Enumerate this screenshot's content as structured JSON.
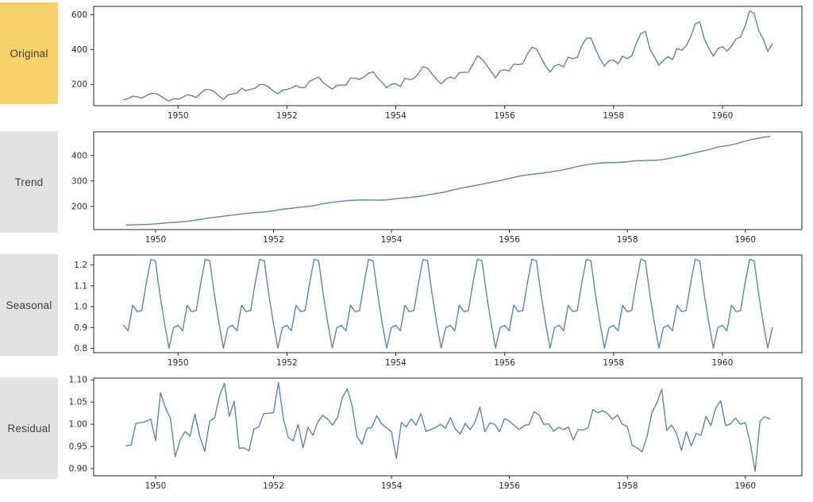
{
  "figure": {
    "background": "#ffffff"
  },
  "colors": {
    "line": "#5b87a8",
    "axis": "#262626",
    "tick_text": "#2b2b2b",
    "label_text": "#3f3f3f",
    "original_label_bg": "#f7d269",
    "gray_label_bg": "#e3e2e2"
  },
  "chart_data": [
    {
      "type": "line",
      "name": "original",
      "label": "Original",
      "label_bg": "#f7d269",
      "series_start": 1949.0,
      "points_per_year": 12,
      "values": [
        112,
        118,
        132,
        129,
        121,
        135,
        148,
        148,
        136,
        119,
        104,
        118,
        115,
        126,
        141,
        135,
        125,
        149,
        170,
        170,
        158,
        133,
        114,
        140,
        145,
        150,
        178,
        163,
        172,
        178,
        199,
        199,
        184,
        162,
        146,
        166,
        171,
        180,
        193,
        181,
        183,
        218,
        230,
        242,
        209,
        191,
        172,
        194,
        196,
        196,
        236,
        235,
        229,
        243,
        264,
        272,
        237,
        211,
        180,
        201,
        204,
        188,
        235,
        227,
        234,
        264,
        302,
        293,
        259,
        229,
        203,
        229,
        242,
        233,
        267,
        269,
        270,
        315,
        364,
        347,
        312,
        274,
        237,
        278,
        284,
        277,
        317,
        313,
        318,
        374,
        413,
        405,
        355,
        306,
        271,
        306,
        315,
        301,
        356,
        348,
        355,
        422,
        465,
        467,
        404,
        347,
        305,
        336,
        340,
        318,
        362,
        348,
        363,
        435,
        491,
        505,
        404,
        359,
        310,
        337,
        360,
        342,
        406,
        396,
        420,
        472,
        548,
        559,
        463,
        407,
        362,
        405,
        417,
        391,
        419,
        461,
        472,
        535,
        622,
        606,
        508,
        461,
        390,
        432
      ],
      "xlim": [
        1948.45,
        1961.46
      ],
      "ylim": [
        78,
        648
      ],
      "xticks": {
        "values": [
          1950,
          1952,
          1954,
          1956,
          1958,
          1960
        ],
        "labels": [
          "1950",
          "1952",
          "1954",
          "1956",
          "1958",
          "1960"
        ]
      },
      "yticks": {
        "values": [
          200,
          400,
          600
        ],
        "labels": [
          "200",
          "400",
          "600"
        ]
      },
      "grid": false
    },
    {
      "type": "line",
      "name": "trend",
      "label": "Trend",
      "label_bg": "#e3e2e2",
      "series_start": 1949.5,
      "points_per_year": 12,
      "values": [
        126.8,
        127.3,
        128.0,
        128.6,
        129.0,
        129.8,
        131.3,
        133.1,
        134.9,
        136.4,
        137.4,
        138.8,
        140.9,
        143.2,
        145.7,
        148.4,
        151.5,
        154.7,
        157.1,
        159.5,
        161.8,
        164.1,
        166.7,
        169.1,
        171.3,
        173.6,
        175.5,
        176.8,
        178.0,
        180.2,
        183.1,
        186.2,
        189.0,
        191.3,
        193.6,
        195.8,
        198.0,
        199.8,
        202.2,
        206.3,
        210.4,
        213.4,
        215.8,
        218.5,
        220.9,
        222.9,
        224.1,
        224.7,
        225.3,
        225.3,
        225.0,
        224.6,
        224.5,
        225.5,
        228.0,
        230.5,
        232.3,
        233.9,
        235.6,
        237.8,
        240.5,
        244.0,
        247.2,
        250.3,
        253.5,
        257.1,
        261.8,
        266.7,
        271.1,
        275.2,
        278.5,
        282.0,
        285.8,
        289.3,
        293.3,
        297.2,
        301.0,
        305.5,
        310.0,
        314.4,
        318.6,
        321.8,
        324.5,
        327.1,
        329.5,
        331.8,
        334.5,
        337.5,
        340.5,
        344.1,
        348.3,
        353.0,
        357.6,
        361.4,
        364.5,
        367.2,
        369.5,
        371.2,
        372.2,
        372.4,
        372.8,
        373.6,
        375.3,
        377.9,
        379.5,
        380.0,
        380.7,
        381.0,
        381.8,
        383.7,
        386.5,
        390.3,
        394.7,
        398.6,
        402.5,
        407.2,
        411.9,
        416.3,
        420.5,
        425.5,
        430.7,
        435.1,
        437.7,
        441.0,
        445.8,
        450.6,
        456.3,
        461.4,
        465.2,
        469.3,
        472.8,
        475.0
      ],
      "xlim": [
        1948.95,
        1960.96
      ],
      "ylim": [
        109,
        493
      ],
      "xticks": {
        "values": [
          1950,
          1952,
          1954,
          1956,
          1958,
          1960
        ],
        "labels": [
          "1950",
          "1952",
          "1954",
          "1956",
          "1958",
          "1960"
        ]
      },
      "yticks": {
        "values": [
          200,
          300,
          400
        ],
        "labels": [
          "200",
          "300",
          "400"
        ]
      },
      "grid": false
    },
    {
      "type": "line",
      "name": "seasonal",
      "label": "Seasonal",
      "label_bg": "#e3e2e2",
      "series_start": 1949.0,
      "points_per_year": 12,
      "monthly_factors": [
        0.91,
        0.884,
        1.007,
        0.976,
        0.981,
        1.113,
        1.227,
        1.22,
        1.06,
        0.922,
        0.801,
        0.899
      ],
      "repeats": 12,
      "xlim": [
        1948.45,
        1961.46
      ],
      "ylim": [
        0.779,
        1.248
      ],
      "xticks": {
        "values": [
          1950,
          1952,
          1954,
          1956,
          1958,
          1960
        ],
        "labels": [
          "1950",
          "1952",
          "1954",
          "1956",
          "1958",
          "1960"
        ]
      },
      "yticks": {
        "values": [
          0.8,
          0.9,
          1.0,
          1.1,
          1.2
        ],
        "labels": [
          "0.8",
          "0.9",
          "1.0",
          "1.1",
          "1.2"
        ]
      },
      "grid": false
    },
    {
      "type": "line",
      "name": "residual",
      "label": "Residual",
      "label_bg": "#e3e2e2",
      "series_start": 1949.5,
      "points_per_year": 12,
      "values": [
        0.952,
        0.953,
        1.002,
        1.004,
        1.006,
        1.012,
        0.963,
        1.071,
        1.037,
        1.014,
        0.927,
        0.965,
        0.984,
        0.973,
        1.023,
        0.972,
        0.939,
        1.007,
        1.014,
        1.064,
        1.092,
        1.018,
        1.052,
        0.946,
        0.947,
        0.94,
        0.989,
        0.994,
        1.024,
        1.025,
        1.026,
        1.094,
        1.013,
        0.97,
        0.963,
        1.0,
        0.947,
        0.993,
        0.975,
        1.005,
        1.02,
        1.012,
        0.998,
        1.015,
        1.06,
        1.08,
        1.041,
        0.972,
        0.955,
        0.99,
        0.993,
        1.019,
        1.001,
        0.992,
        0.983,
        0.923,
        1.004,
        0.994,
        1.012,
        0.998,
        1.024,
        0.984,
        0.988,
        0.993,
        1.0,
        0.991,
        1.015,
        0.989,
        0.978,
        1.002,
        0.988,
        1.004,
        1.039,
        0.983,
        1.003,
        1.0,
        0.983,
        1.013,
        1.007,
        0.997,
        0.988,
        0.997,
        0.999,
        1.028,
        1.022,
        1.0,
        1.001,
        0.984,
        0.993,
        0.988,
        0.994,
        0.965,
        0.988,
        0.987,
        0.992,
        1.033,
        1.026,
        1.031,
        1.024,
        1.011,
        1.021,
        1.0,
        0.995,
        0.952,
        0.947,
        0.938,
        0.972,
        1.026,
        1.048,
        1.079,
        0.986,
        0.998,
        0.98,
        0.941,
        0.983,
        0.951,
        0.979,
        0.975,
        1.018,
        0.997,
        1.037,
        1.053,
        0.997,
        1.001,
        1.014,
        1.0,
        1.004,
        0.959,
        0.894,
        1.007,
        1.017,
        1.012
      ],
      "xlim": [
        1948.95,
        1960.96
      ],
      "ylim": [
        0.884,
        1.104
      ],
      "xticks": {
        "values": [
          1950,
          1952,
          1954,
          1956,
          1958,
          1960
        ],
        "labels": [
          "1950",
          "1952",
          "1954",
          "1956",
          "1958",
          "1960"
        ]
      },
      "yticks": {
        "values": [
          0.9,
          0.95,
          1.0,
          1.05,
          1.1
        ],
        "labels": [
          "0.90",
          "0.95",
          "1.00",
          "1.05",
          "1.10"
        ]
      },
      "grid": false
    }
  ]
}
